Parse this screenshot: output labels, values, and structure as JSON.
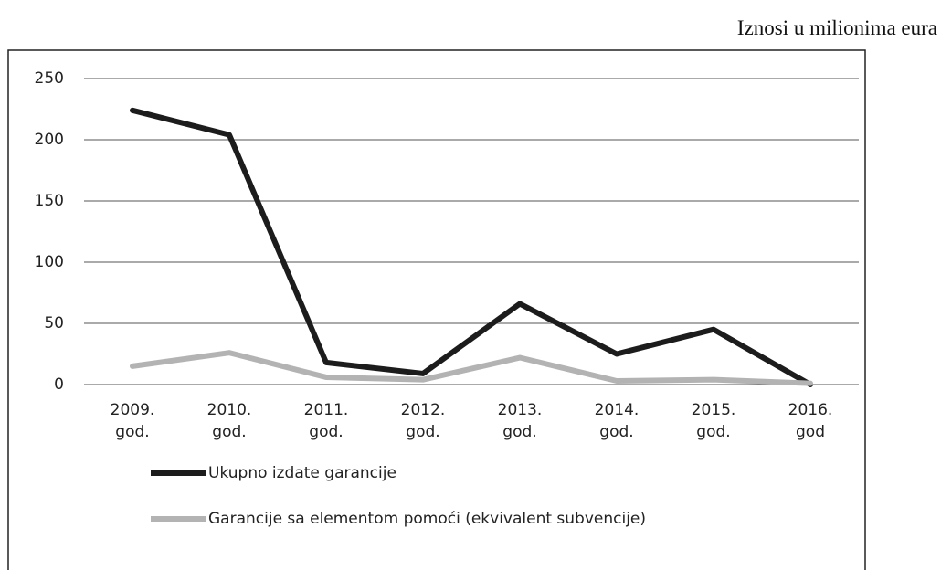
{
  "chart_data": {
    "type": "line",
    "note": "Iznosi u milionima eura",
    "categories": [
      "2009. god.",
      "2010. god.",
      "2011. god.",
      "2012. god.",
      "2013. god.",
      "2014. god.",
      "2015. god.",
      "2016. god"
    ],
    "series": [
      {
        "name": "Ukupno izdate garancije",
        "color": "#1c1c1c",
        "values": [
          224,
          204,
          18,
          9,
          66,
          25,
          45,
          0
        ]
      },
      {
        "name": "Garancije sa elementom pomoći (ekvivalent subvencije)",
        "color": "#b3b3b3",
        "values": [
          15,
          26,
          6,
          4,
          22,
          3,
          4,
          1
        ]
      }
    ],
    "ylim": [
      0,
      250
    ],
    "yticks": [
      0,
      50,
      100,
      150,
      200,
      250
    ],
    "grid": true
  }
}
